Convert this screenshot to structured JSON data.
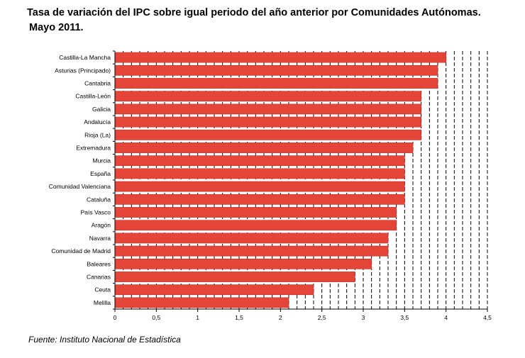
{
  "title_line1": "Tasa de variación del IPC sobre igual periodo del año anterior por Comunidades Autónomas.",
  "title_line2": "Mayo 2011.",
  "source": "Fuente: Instituto Nacional de Estadística",
  "chart_data": {
    "type": "bar",
    "orientation": "horizontal",
    "categories": [
      "Castilla-La Mancha",
      "Asturias (Principado)",
      "Cantabria",
      "Castilla-León",
      "Galicia",
      "Andalucía",
      "Rioja (La)",
      "Extremadura",
      "Murcia",
      "España",
      "Comunidad Valenciana",
      "Cataluña",
      "País Vasco",
      "Aragón",
      "Navarra",
      "Comunidad de Madrid",
      "Baleares",
      "Canarias",
      "Ceuta",
      "Melilla"
    ],
    "values": [
      4.0,
      3.9,
      3.9,
      3.7,
      3.7,
      3.7,
      3.7,
      3.6,
      3.5,
      3.5,
      3.5,
      3.5,
      3.4,
      3.4,
      3.3,
      3.3,
      3.1,
      2.9,
      2.4,
      2.1
    ],
    "xlim": [
      0,
      4.5
    ],
    "ticks": [
      0,
      0.5,
      1,
      1.5,
      2,
      2.5,
      3,
      3.5,
      4,
      4.5
    ],
    "tick_labels": [
      "0",
      "0,5",
      "1",
      "1,5",
      "2",
      "2,5",
      "3",
      "3,5",
      "4",
      "4,5"
    ],
    "grid": "vertical dashed every 0.1",
    "bar_color": "#e8473a",
    "bar_edge_color": "#b8302a",
    "title": "",
    "xlabel": "",
    "ylabel": ""
  }
}
